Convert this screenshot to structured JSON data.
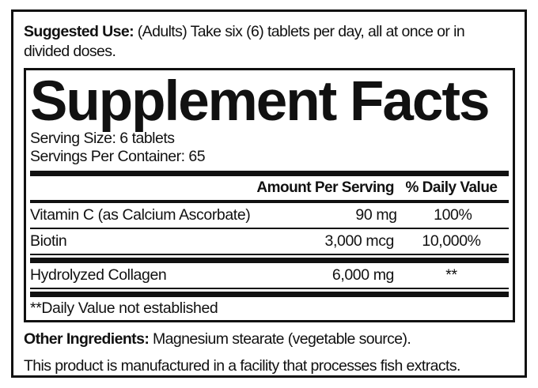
{
  "colors": {
    "text": "#111111",
    "rule": "#111111",
    "background": "#ffffff"
  },
  "label": {
    "suggested_use": {
      "lead": "Suggested Use:",
      "line1": " (Adults) Take six (6) tablets per day, all at once or in",
      "line2": "divided doses."
    },
    "panel": {
      "title": "Supplement Facts",
      "serving_size": "Serving Size: 6 tablets",
      "servings_per_container": "Servings Per Container: 65",
      "columns": {
        "amount": "Amount Per Serving",
        "dv": "% Daily Value"
      },
      "rows": [
        {
          "name": "Vitamin C (as Calcium Ascorbate)",
          "amount": "90 mg",
          "dv": "100%"
        },
        {
          "name": "Biotin",
          "amount": "3,000 mcg",
          "dv": "10,000%"
        },
        {
          "name": "Hydrolyzed Collagen",
          "amount": "6,000 mg",
          "dv": "**"
        }
      ],
      "footnote": "**Daily Value not established"
    },
    "other_ingredients": {
      "lead": "Other Ingredients:",
      "text": " Magnesium stearate (vegetable source)."
    },
    "allergen_statement": "This product is manufactured in a facility that processes fish extracts."
  }
}
